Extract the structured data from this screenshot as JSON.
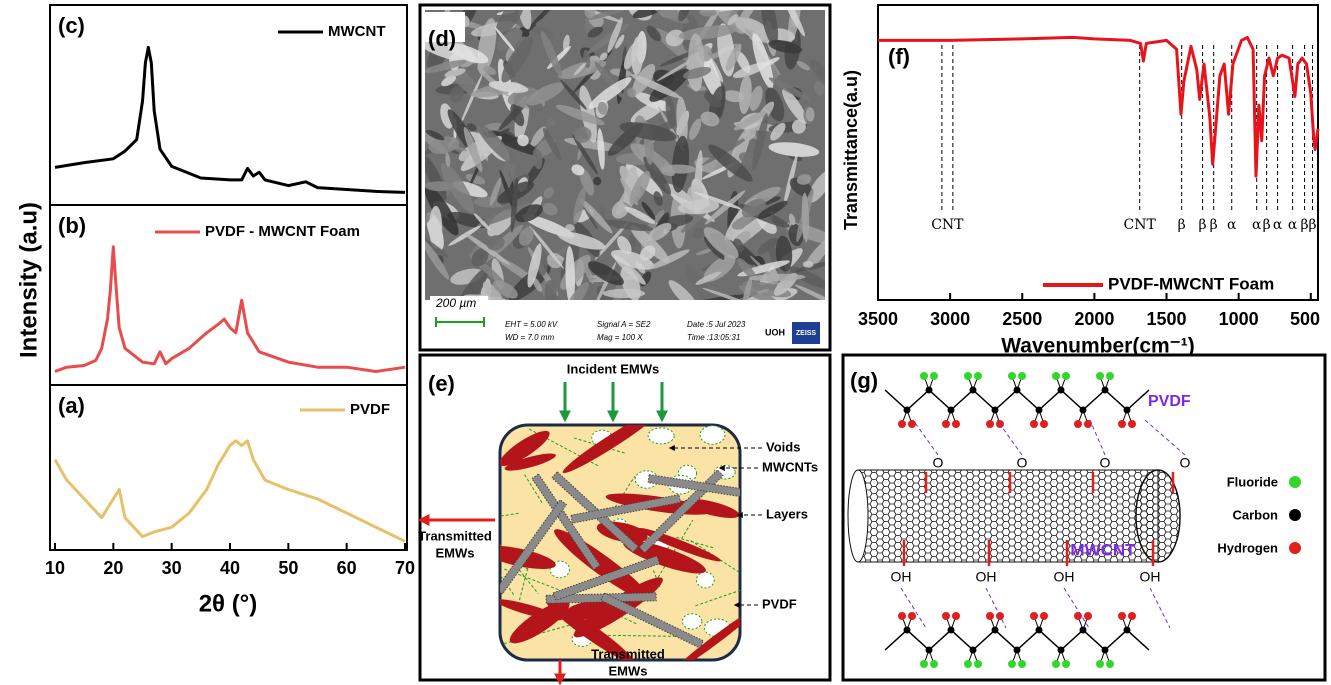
{
  "chart_data": [
    {
      "type": "line",
      "x_label": "2θ (°)",
      "y_label": "Intensity (a.u)",
      "xlim": [
        10,
        70
      ],
      "xticks": [
        10,
        20,
        30,
        40,
        50,
        60,
        70
      ],
      "panels": [
        {
          "label": "(c)",
          "ylim": [
            0,
            100
          ],
          "series": [
            {
              "name": "MWCNT",
              "color": "#000000",
              "x": [
                10,
                15,
                20,
                22,
                24,
                25,
                25.5,
                26,
                26.5,
                27,
                28,
                30,
                35,
                40,
                42,
                43,
                44,
                45,
                46,
                50,
                53,
                55,
                60,
                65,
                70
              ],
              "values": [
                17.5,
                20,
                22,
                26,
                32,
                52,
                72,
                80,
                72,
                47,
                27,
                18,
                12,
                11,
                11,
                17,
                13,
                15,
                11,
                8,
                10,
                7,
                6,
                5,
                4.5
              ]
            }
          ]
        },
        {
          "label": "(b)",
          "ylim": [
            0,
            100
          ],
          "series": [
            {
              "name": "PVDF - MWCNT Foam",
              "color": "#e84c4c",
              "x": [
                10,
                12,
                15,
                17,
                18,
                19,
                19.5,
                20,
                20.5,
                21,
                22,
                25,
                27,
                28,
                29,
                30,
                33,
                36,
                38,
                39,
                40,
                41,
                42,
                43,
                45,
                50,
                55,
                60,
                65,
                70
              ],
              "values": [
                5.5,
                8,
                9,
                12,
                19,
                36,
                53,
                78,
                53,
                31,
                19,
                11,
                10,
                17,
                10,
                13,
                19,
                28,
                33,
                36,
                31,
                28,
                47,
                28,
                17,
                11,
                8,
                8,
                5.5,
                8
              ]
            }
          ]
        },
        {
          "label": "(a)",
          "ylim": [
            0,
            100
          ],
          "series": [
            {
              "name": "PVDF",
              "color": "#e7c06a",
              "x": [
                10,
                12,
                15,
                18,
                20,
                21,
                22,
                25,
                27,
                30,
                33,
                36,
                38,
                40,
                41,
                42,
                43,
                44,
                46,
                50,
                55,
                60,
                65,
                70
              ],
              "values": [
                55,
                42,
                30,
                18,
                30,
                36,
                18,
                6,
                9,
                12,
                21,
                36,
                52,
                64,
                67,
                64,
                67,
                55,
                42,
                36,
                30,
                21,
                12,
                3
              ]
            }
          ]
        }
      ]
    },
    {
      "type": "line",
      "label": "(f)",
      "x_label": "Wavenumber(cm⁻¹)",
      "y_label": "Transmittance(a.u)",
      "xlim": [
        3500,
        450
      ],
      "xticks": [
        3500,
        3000,
        2500,
        2000,
        1500,
        1000,
        500
      ],
      "ylim": [
        0,
        100
      ],
      "series": [
        {
          "name": "PVDF-MWCNT Foam",
          "color": "#e8141c",
          "x": [
            3500,
            3000,
            2500,
            2150,
            2000,
            1750,
            1680,
            1660,
            1640,
            1500,
            1430,
            1400,
            1380,
            1330,
            1290,
            1270,
            1240,
            1200,
            1180,
            1160,
            1130,
            1100,
            1070,
            1040,
            980,
            940,
            900,
            880,
            860,
            840,
            820,
            790,
            760,
            730,
            700,
            650,
            610,
            590,
            560,
            530,
            500,
            480,
            470,
            450
          ],
          "values": [
            88,
            88,
            88.5,
            89,
            88.5,
            88,
            87,
            81,
            87,
            88,
            85,
            63,
            74,
            86,
            78,
            68,
            80,
            62,
            46,
            58,
            76,
            80,
            63,
            80,
            88,
            89,
            85,
            42,
            66,
            54,
            76,
            82,
            76,
            82,
            83,
            82,
            69,
            80,
            82,
            80,
            70,
            55,
            51,
            58
          ]
        }
      ],
      "annotations": [
        {
          "label": "CNT",
          "x": [
            3057,
            2981
          ]
        },
        {
          "label": "CNT",
          "x": [
            1686
          ]
        },
        {
          "label": "β",
          "x": [
            1395
          ]
        },
        {
          "label": "β",
          "x": [
            1250
          ]
        },
        {
          "label": "β",
          "x": [
            1173
          ]
        },
        {
          "label": "α",
          "x": [
            1048
          ]
        },
        {
          "label": "α",
          "x": [
            875
          ]
        },
        {
          "label": "β",
          "x": [
            806
          ]
        },
        {
          "label": "α",
          "x": [
            730
          ]
        },
        {
          "label": "α",
          "x": [
            626
          ]
        },
        {
          "label": "β",
          "x": [
            543
          ]
        },
        {
          "label": "β",
          "x": [
            488
          ]
        }
      ]
    }
  ],
  "sem": {
    "label": "(d)",
    "scale_bar": "200 µm",
    "info": [
      "EHT =  5.00 kV",
      "WD =  7.0 mm",
      "Signal A = SE2",
      "Mag =    100 X",
      "Date :5 Jul 2023",
      "Time :13:05:31"
    ],
    "institute": "UOH",
    "brand": "ZEISS"
  },
  "schematic": {
    "label": "(e)",
    "incident": "Incident EMWs",
    "labels": [
      "Voids",
      "MWCNTs",
      "Layers",
      "PVDF"
    ],
    "transmitted_left": [
      "Transmitted",
      "EMWs"
    ],
    "transmitted_bottom": [
      "Transmitted",
      "EMWs"
    ]
  },
  "interaction": {
    "label": "(g)",
    "polymer": "PVDF",
    "oxygen": [
      "O",
      "O",
      "O",
      "O"
    ],
    "hydroxyl": [
      "OH",
      "OH",
      "OH",
      "OH"
    ],
    "tube": "MWCNT",
    "legend": [
      "Fluoride",
      "Carbon",
      "Hydrogen"
    ]
  }
}
